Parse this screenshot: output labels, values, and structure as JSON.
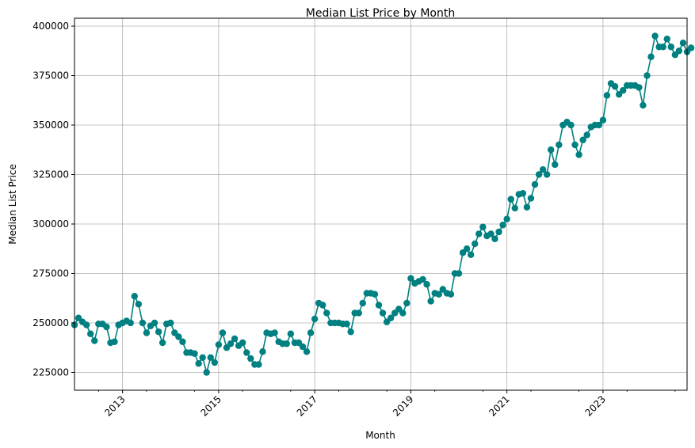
{
  "chart_data": {
    "type": "line",
    "title": "Median List Price by Month",
    "xlabel": "Month",
    "ylabel": "Median List Price",
    "xlim": [
      "2012-01",
      "2024-10"
    ],
    "ylim": [
      216000,
      404000
    ],
    "x_ticks_major": [
      "2013",
      "2015",
      "2017",
      "2019",
      "2021",
      "2023"
    ],
    "y_ticks": [
      "225000",
      "250000",
      "275000",
      "300000",
      "325000",
      "350000",
      "375000",
      "400000"
    ],
    "grid": true,
    "line_color": "#008080",
    "marker": "circle",
    "x_start": "2012-01",
    "x_step": "1 month",
    "values": [
      249000,
      252500,
      250500,
      249000,
      244500,
      241000,
      249500,
      249500,
      248000,
      240000,
      240500,
      249000,
      250000,
      251000,
      250000,
      263500,
      259500,
      250000,
      245000,
      248500,
      250000,
      245500,
      240000,
      249500,
      250000,
      245000,
      243000,
      240500,
      235000,
      235000,
      234500,
      229500,
      232500,
      225000,
      232500,
      230000,
      239000,
      245000,
      237500,
      239500,
      242000,
      238500,
      240000,
      235000,
      232000,
      229000,
      229000,
      235500,
      245000,
      244500,
      245000,
      240500,
      239500,
      239500,
      244500,
      240000,
      240000,
      238000,
      235500,
      245000,
      252000,
      260000,
      259000,
      255000,
      250000,
      250000,
      250000,
      249500,
      249500,
      245500,
      255000,
      255000,
      260000,
      265000,
      265000,
      264500,
      259000,
      255000,
      250500,
      252500,
      255000,
      257000,
      255000,
      260000,
      272500,
      270000,
      271000,
      272000,
      269500,
      261000,
      265000,
      264500,
      267000,
      265000,
      264500,
      275000,
      275000,
      285500,
      287500,
      284500,
      290000,
      295000,
      298500,
      294000,
      295000,
      292500,
      296000,
      299500,
      302500,
      312500,
      308000,
      315000,
      315500,
      308500,
      313000,
      320000,
      325000,
      327500,
      325000,
      337500,
      330000,
      340000,
      350000,
      351500,
      350000,
      340000,
      335000,
      342500,
      345000,
      349000,
      350000,
      350000,
      352500,
      365000,
      371000,
      369500,
      365500,
      367500,
      370000,
      370000,
      370000,
      369000,
      360000,
      375000,
      384500,
      395000,
      389500,
      389500,
      393500,
      389500,
      385500,
      387500,
      391500,
      387000,
      389000
    ]
  }
}
